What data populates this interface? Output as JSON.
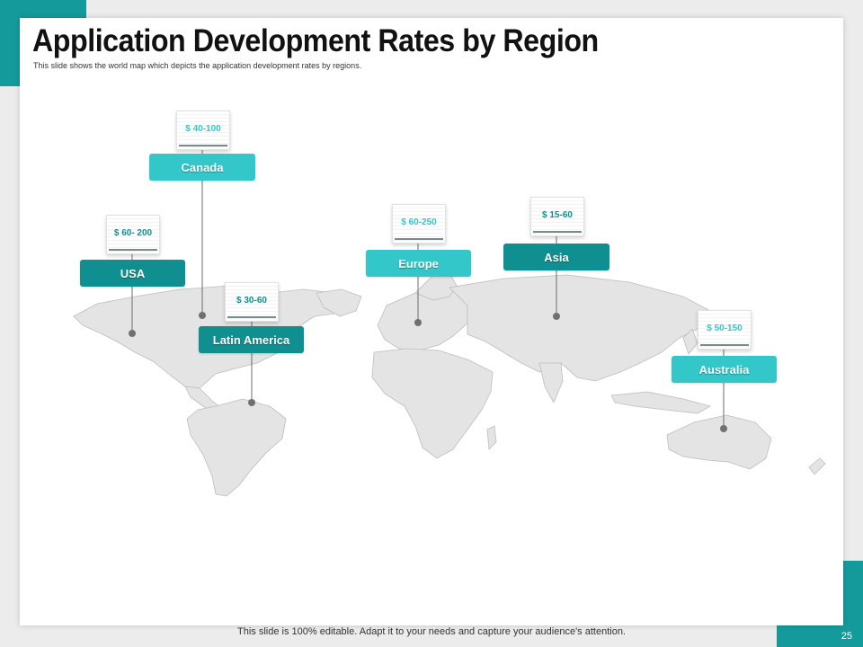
{
  "slide": {
    "title": "Application Development Rates by Region",
    "subtitle": "This slide shows the world map which depicts the application development rates by regions.",
    "footer": "This slide is 100% editable. Adapt it to your needs and capture your audience's attention.",
    "page_number": "25"
  },
  "colors": {
    "accent": "#159a9c",
    "label_dark": "#0f8f8f",
    "label_light": "#33c7c9",
    "map_fill": "#e4e4e4",
    "map_outline": "#bdbdbd"
  },
  "regions": [
    {
      "name": "Canada",
      "rate": "$ 40-100",
      "style": "light"
    },
    {
      "name": "USA",
      "rate": "$ 60- 200",
      "style": "dark"
    },
    {
      "name": "Latin America",
      "rate": "$ 30-60",
      "style": "dark"
    },
    {
      "name": "Europe",
      "rate": "$ 60-250",
      "style": "light"
    },
    {
      "name": "Asia",
      "rate": "$ 15-60",
      "style": "dark"
    },
    {
      "name": "Australia",
      "rate": "$ 50-150",
      "style": "light"
    }
  ]
}
